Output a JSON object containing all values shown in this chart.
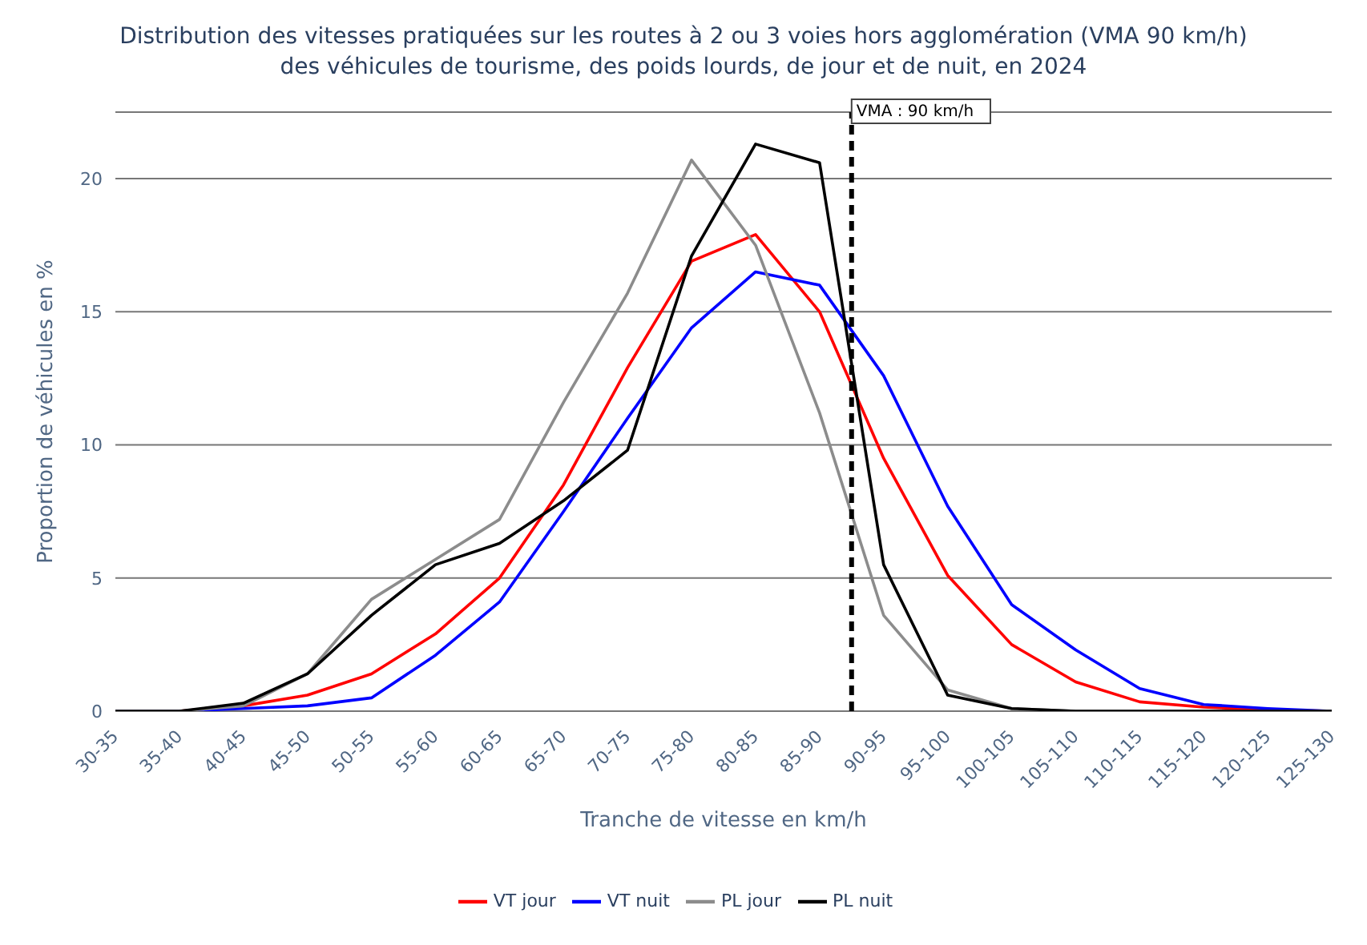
{
  "chart_data": {
    "type": "line",
    "title": "Distribution des vitesses pratiquées sur les routes à 2 ou 3 voies hors agglomération (VMA 90 km/h)",
    "subtitle": "des véhicules de tourisme, des poids lourds, de jour et de nuit, en 2024",
    "xlabel": "Tranche de vitesse en km/h",
    "ylabel": "Proportion de véhicules en %",
    "categories": [
      "30-35",
      "35-40",
      "40-45",
      "45-50",
      "50-55",
      "55-60",
      "60-65",
      "65-70",
      "70-75",
      "75-80",
      "80-85",
      "85-90",
      "90-95",
      "95-100",
      "100-105",
      "105-110",
      "110-115",
      "115-120",
      "120-125",
      "125-130"
    ],
    "series": [
      {
        "name": "VT jour",
        "color": "#ff0000",
        "values": [
          0,
          0,
          0.2,
          0.6,
          1.4,
          2.9,
          5.0,
          8.5,
          12.9,
          16.9,
          17.9,
          15.0,
          9.5,
          5.1,
          2.5,
          1.1,
          0.35,
          0.15,
          0.05,
          0
        ]
      },
      {
        "name": "VT nuit",
        "color": "#0000ff",
        "values": [
          0,
          0,
          0.1,
          0.2,
          0.5,
          2.1,
          4.1,
          7.5,
          11,
          14.4,
          16.5,
          16.0,
          12.6,
          7.7,
          4.0,
          2.3,
          0.85,
          0.25,
          0.1,
          0
        ]
      },
      {
        "name": "PL jour",
        "color": "#8c8c8c",
        "values": [
          0,
          0,
          0.2,
          1.4,
          4.2,
          5.7,
          7.2,
          11.6,
          15.7,
          20.7,
          17.5,
          11.2,
          3.6,
          0.8,
          0.1,
          0,
          0,
          0,
          0,
          0
        ]
      },
      {
        "name": "PL nuit",
        "color": "#000000",
        "values": [
          0,
          0,
          0.3,
          1.4,
          3.6,
          5.5,
          6.3,
          7.9,
          9.8,
          17.1,
          21.3,
          20.6,
          5.5,
          0.6,
          0.1,
          0,
          0,
          0,
          0,
          0
        ]
      }
    ],
    "ylim": [
      0,
      22.5
    ],
    "yticks": [
      0,
      5,
      10,
      15,
      20
    ],
    "grid": "y",
    "legend": "bottom",
    "marker": "none",
    "line_style": "solid",
    "ref_lines": [
      {
        "axis": "x",
        "value": "85-90",
        "label": "VMA : 90 km/h",
        "color": "#000000",
        "line_style": "dashed"
      }
    ]
  }
}
